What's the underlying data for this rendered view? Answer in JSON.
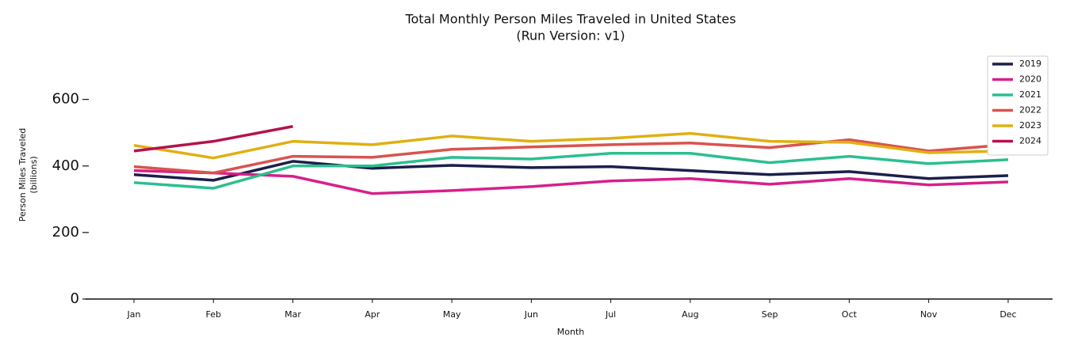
{
  "chart_data": {
    "type": "line",
    "title": "Total Monthly Person Miles Traveled in United States",
    "subtitle": "(Run Version: v1)",
    "xlabel": "Month",
    "ylabel": [
      "Person Miles Traveled",
      "(billions)"
    ],
    "categories": [
      "Jan",
      "Feb",
      "Mar",
      "Apr",
      "May",
      "Jun",
      "Jul",
      "Aug",
      "Sep",
      "Oct",
      "Nov",
      "Dec"
    ],
    "series": [
      {
        "name": "2019",
        "color": "#1b1f4b",
        "values": [
          374,
          357,
          414,
          393,
          402,
          395,
          398,
          386,
          374,
          383,
          362,
          371
        ]
      },
      {
        "name": "2020",
        "color": "#d6208a",
        "values": [
          386,
          379,
          369,
          317,
          326,
          338,
          355,
          362,
          345,
          362,
          343,
          352
        ]
      },
      {
        "name": "2021",
        "color": "#2bbf8f",
        "values": [
          350,
          333,
          400,
          400,
          426,
          421,
          438,
          438,
          410,
          429,
          407,
          419
        ]
      },
      {
        "name": "2022",
        "color": "#d9534f",
        "values": [
          398,
          379,
          429,
          426,
          450,
          457,
          464,
          469,
          455,
          479,
          445,
          464
        ]
      },
      {
        "name": "2023",
        "color": "#e0b012",
        "values": [
          462,
          424,
          474,
          464,
          490,
          474,
          483,
          498,
          474,
          471,
          440,
          445
        ]
      },
      {
        "name": "2024",
        "color": "#b5124e",
        "values": [
          445,
          474,
          519,
          null,
          null,
          null,
          null,
          null,
          null,
          null,
          null,
          null
        ]
      }
    ],
    "ylim": [
      0,
      730
    ],
    "yticks": [
      0,
      200,
      400,
      600
    ],
    "grid": false,
    "legend": "upper right"
  }
}
